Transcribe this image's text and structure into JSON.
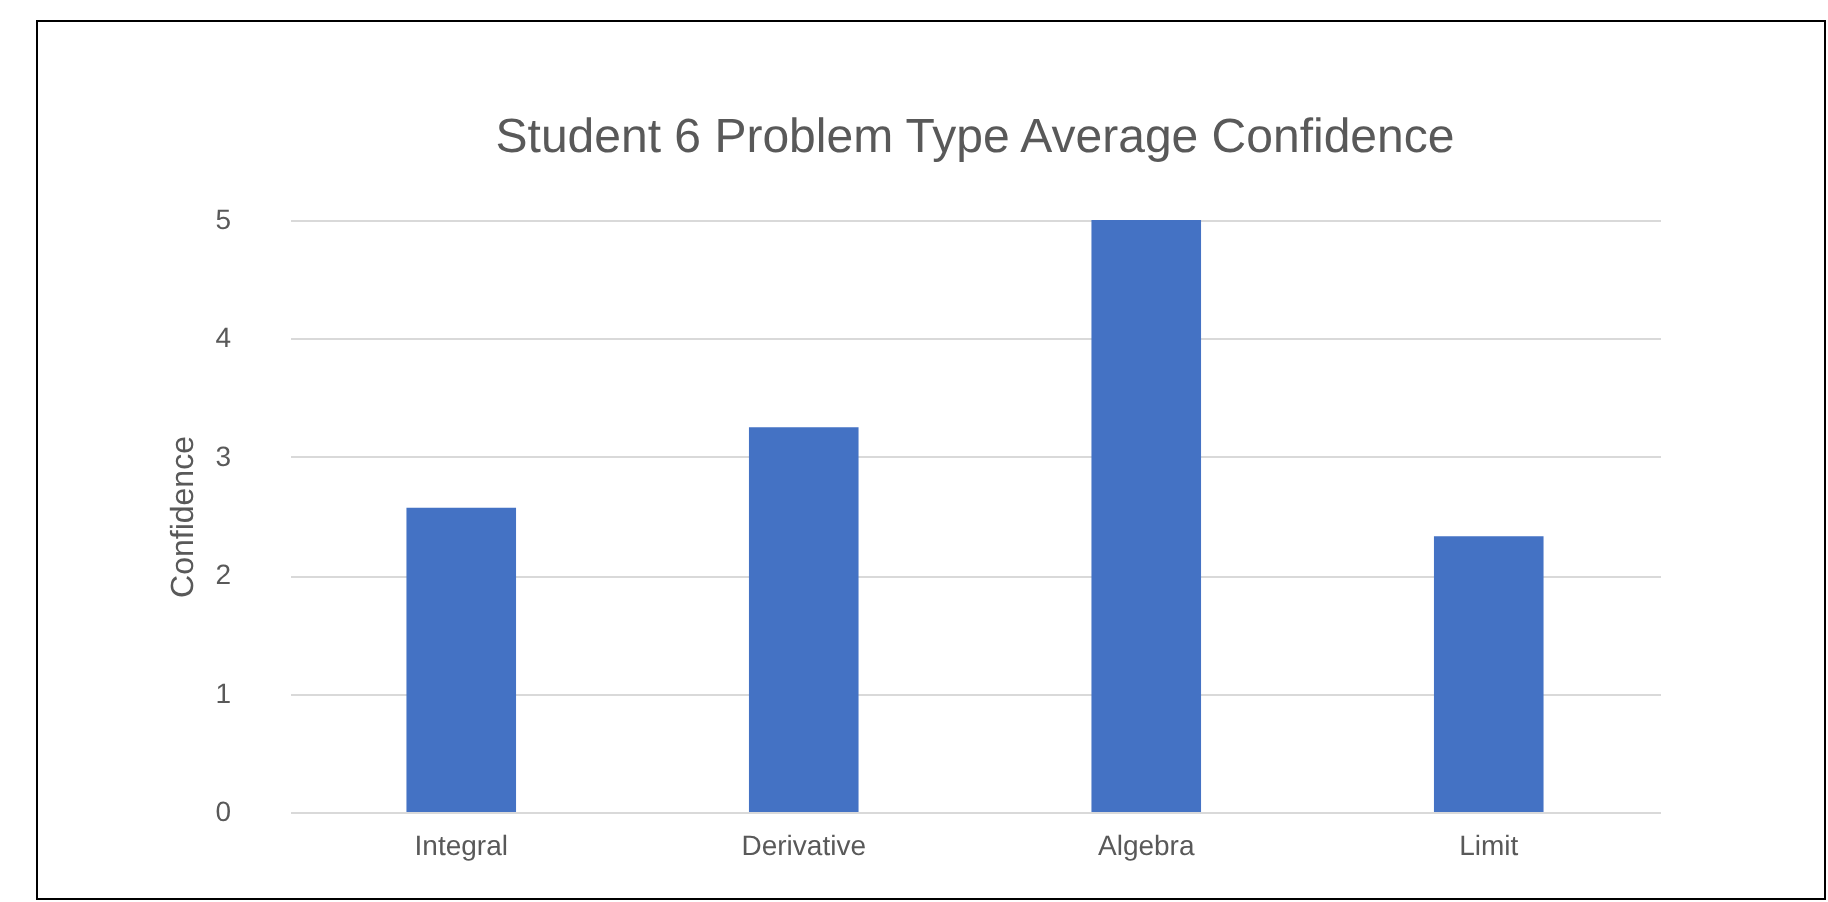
{
  "chart_data": {
    "type": "bar",
    "title": "Student 6 Problem Type Average Confidence",
    "ylabel": "Confidence",
    "categories": [
      "Integral",
      "Derivative",
      "Algebra",
      "Limit"
    ],
    "values": [
      2.57,
      3.25,
      5,
      2.33
    ],
    "color": "#4472c4",
    "ylim": [
      0,
      5
    ],
    "yticks": [
      0,
      1,
      2,
      3,
      4,
      5
    ],
    "grid": "y"
  }
}
